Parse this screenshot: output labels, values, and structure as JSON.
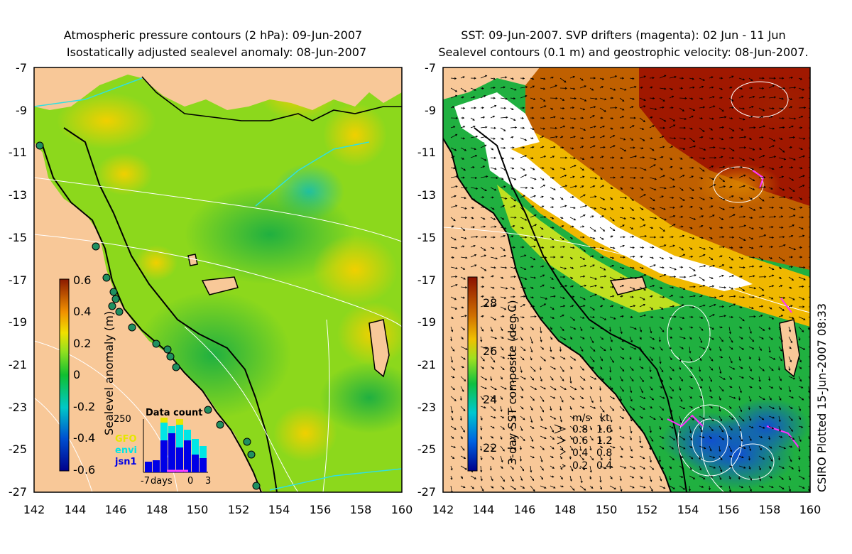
{
  "left_panel": {
    "title_line1": "Atmospheric pressure contours (2 hPa): 09-Jun-2007",
    "title_line2": "Isostatically adjusted sealevel anomaly: 08-Jun-2007",
    "x_ticks": [
      "142",
      "144",
      "146",
      "148",
      "150",
      "152",
      "154",
      "156",
      "158",
      "160"
    ],
    "y_ticks": [
      "-7",
      "-9",
      "-11",
      "-13",
      "-15",
      "-17",
      "-19",
      "-21",
      "-23",
      "-25",
      "-27"
    ],
    "colorbar": {
      "label": "Sealevel anomaly (m)",
      "ticks": [
        "0.6",
        "0.4",
        "0.2",
        "0",
        "-0.2",
        "-0.4",
        "-0.6"
      ],
      "range": [
        -0.6,
        0.6
      ]
    },
    "data_count": {
      "title": "Data count",
      "y_label": "250",
      "legend": [
        "GFO",
        "envi",
        "jsn1"
      ],
      "legend_colors": [
        "#e6e600",
        "#00e6e6",
        "#0000e6"
      ],
      "x_labels": [
        "-7",
        "days",
        "0",
        "3"
      ]
    }
  },
  "right_panel": {
    "title_line1": "SST: 09-Jun-2007. SVP drifters (magenta): 02 Jun - 11 Jun",
    "title_line2": "Sealevel contours (0.1 m) and geostrophic velocity: 08-Jun-2007.",
    "x_ticks": [
      "142",
      "144",
      "146",
      "148",
      "150",
      "152",
      "154",
      "156",
      "158",
      "160"
    ],
    "y_ticks": [
      "-7",
      "-9",
      "-11",
      "-13",
      "-15",
      "-17",
      "-19",
      "-21",
      "-23",
      "-25",
      "-27"
    ],
    "colorbar": {
      "label": "3-day SST composite (deg C)",
      "ticks": [
        "28",
        "26",
        "24",
        "22"
      ],
      "range": [
        21,
        29
      ]
    },
    "velocity_legend": {
      "header_ms": "m/s",
      "header_kt": "kt",
      "rows": [
        {
          "ms": "0.8",
          "kt": "1.6"
        },
        {
          "ms": "0.6",
          "kt": "1.2"
        },
        {
          "ms": "0.4",
          "kt": "0.8"
        },
        {
          "ms": "0.2",
          "kt": "0.4"
        }
      ]
    }
  },
  "credit": "CSIRO Plotted 15-Jun-2007 08:33"
}
